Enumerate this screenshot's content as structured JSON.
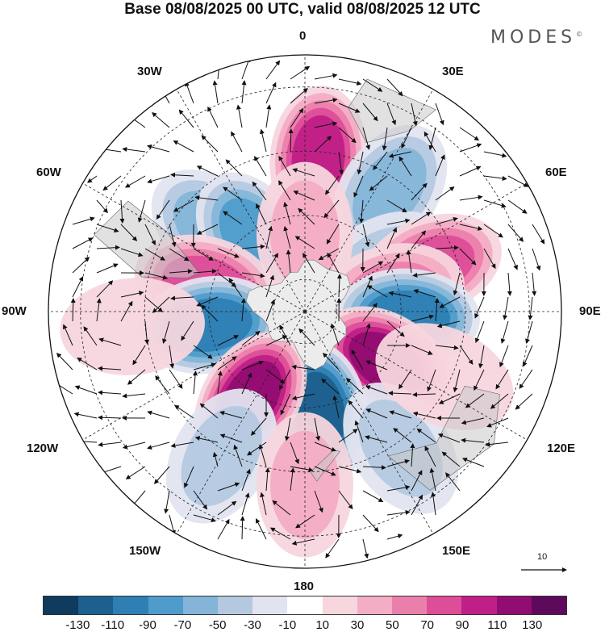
{
  "title": "Base 08/08/2025 00 UTC, valid 08/08/2025 12 UTC",
  "logo": "MODES",
  "logo_mark": "©",
  "longitude_labels": {
    "n0": "0",
    "e30": "30E",
    "e60": "60E",
    "e90": "90E",
    "e120": "120E",
    "e150": "150E",
    "s180": "180",
    "w150": "150W",
    "w120": "120W",
    "w90": "90W",
    "w60": "60W",
    "w30": "30W"
  },
  "reference_vector": "10",
  "colorbar": {
    "colors": [
      "#0f3b5e",
      "#1d5f8f",
      "#2e7fb3",
      "#4f9ccc",
      "#84b5d8",
      "#b4c9e0",
      "#e1e4ef",
      "#ffffff",
      "#f7d6de",
      "#f3adc4",
      "#eb7fac",
      "#dd4d98",
      "#bf1f86",
      "#920d71",
      "#5e0a5c"
    ],
    "tick_labels": [
      "-130",
      "-110",
      "-90",
      "-70",
      "-50",
      "-30",
      "-10",
      "10",
      "30",
      "50",
      "70",
      "90",
      "110",
      "130"
    ]
  },
  "anomalies": [
    {
      "lon": 5,
      "lat": -42,
      "value": 95
    },
    {
      "lon": 35,
      "lat": -44,
      "value": -62
    },
    {
      "lon": 60,
      "lat": -62,
      "value": -40
    },
    {
      "lon": -48,
      "lat": -52,
      "value": -55
    },
    {
      "lon": -35,
      "lat": -62,
      "value": -75
    },
    {
      "lon": 0,
      "lat": -66,
      "value": 45
    },
    {
      "lon": 70,
      "lat": -48,
      "value": 75
    },
    {
      "lon": 78,
      "lat": -62,
      "value": 55
    },
    {
      "lon": -75,
      "lat": -58,
      "value": 85
    },
    {
      "lon": 93,
      "lat": -58,
      "value": -100
    },
    {
      "lon": -98,
      "lat": -60,
      "value": -95
    },
    {
      "lon": 122,
      "lat": -60,
      "value": 120
    },
    {
      "lon": 172,
      "lat": -58,
      "value": -125
    },
    {
      "lon": -148,
      "lat": -58,
      "value": 115
    },
    {
      "lon": -150,
      "lat": -38,
      "value": -45
    },
    {
      "lon": 145,
      "lat": -38,
      "value": -40
    },
    {
      "lon": 180,
      "lat": -36,
      "value": 35
    },
    {
      "lon": -95,
      "lat": -36,
      "value": 30
    },
    {
      "lon": 115,
      "lat": -42,
      "value": 30
    }
  ]
}
